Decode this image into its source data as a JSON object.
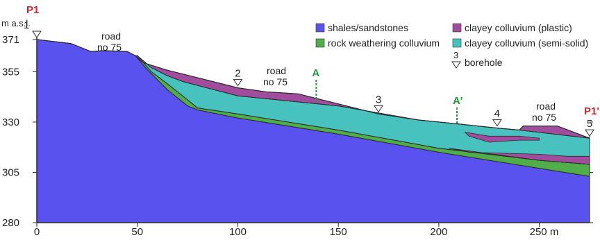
{
  "colors": {
    "shales": "#5a52ee",
    "rock_colluvium": "#4fad4a",
    "clayey_plastic": "#9f4d9c",
    "clayey_semisolid": "#47c2be",
    "profile_label": "#d7262b",
    "section_marker": "#1f9a3a",
    "outline": "#2b2b2b"
  },
  "profile": {
    "start_label": "P1",
    "end_label": "P1'",
    "unit_label": "m a.s.l."
  },
  "x_axis": {
    "range": [
      0,
      275
    ],
    "ticks": [
      "0",
      "50",
      "100",
      "150",
      "200"
    ],
    "last_tick": "250 m"
  },
  "y_axis": {
    "range": [
      280,
      371
    ],
    "ticks": [
      "371",
      "355",
      "330",
      "305",
      "280"
    ]
  },
  "legend": [
    {
      "id": "shales",
      "label": "shales/sandstones"
    },
    {
      "id": "clayey_plastic",
      "label": "clayey colluvium (plastic)"
    },
    {
      "id": "rock_colluvium",
      "label": "rock weathering colluvium"
    },
    {
      "id": "clayey_semisolid",
      "label": "clayey colluvium (semi-solid)"
    },
    {
      "id": "borehole",
      "number": "3",
      "label": "borehole"
    }
  ],
  "boreholes": [
    {
      "number": "1",
      "x": 0,
      "y": 371
    },
    {
      "number": "2",
      "x": 100,
      "y": 347
    },
    {
      "number": "3",
      "x": 170,
      "y": 334
    },
    {
      "number": "4",
      "x": 229,
      "y": 327
    },
    {
      "number": "5",
      "x": 275,
      "y": 322
    }
  ],
  "roads": [
    {
      "line1": "road",
      "line2": "no 75"
    },
    {
      "line1": "road",
      "line2": "no 75"
    },
    {
      "line1": "road",
      "line2": "no 75"
    }
  ],
  "section_markers": [
    {
      "label": "A",
      "x": 139
    },
    {
      "label": "A'",
      "x": 209
    }
  ],
  "surfaces": {
    "ground": [
      [
        0,
        371
      ],
      [
        17,
        369
      ],
      [
        27,
        365
      ],
      [
        33,
        365.5
      ],
      [
        45,
        365
      ],
      [
        49,
        363
      ],
      [
        53,
        359.5
      ],
      [
        64,
        356
      ],
      [
        84,
        351
      ],
      [
        100,
        347
      ],
      [
        114,
        345
      ],
      [
        130,
        344
      ],
      [
        150,
        339
      ],
      [
        170,
        334
      ],
      [
        190,
        331
      ],
      [
        210,
        329
      ],
      [
        229,
        327
      ],
      [
        240,
        326
      ],
      [
        242,
        328
      ],
      [
        259,
        328
      ],
      [
        275,
        322
      ]
    ],
    "semisolid_top": [
      [
        50,
        363
      ],
      [
        57,
        357
      ],
      [
        65,
        353
      ],
      [
        73,
        350
      ],
      [
        100,
        343
      ],
      [
        150,
        338
      ],
      [
        190,
        331
      ],
      [
        210,
        329
      ],
      [
        229,
        327
      ],
      [
        240,
        326
      ],
      [
        275,
        322
      ]
    ],
    "rock_colluvium_top": [
      [
        50,
        363
      ],
      [
        57,
        355
      ],
      [
        65,
        349
      ],
      [
        75,
        341
      ],
      [
        80,
        337
      ],
      [
        100,
        334
      ],
      [
        150,
        326
      ],
      [
        200,
        317
      ],
      [
        250,
        311
      ],
      [
        275,
        309
      ]
    ],
    "bedrock": [
      [
        0,
        371
      ],
      [
        17,
        369
      ],
      [
        27,
        365
      ],
      [
        33,
        365.5
      ],
      [
        45,
        365
      ],
      [
        49,
        363
      ],
      [
        55,
        356
      ],
      [
        65,
        346
      ],
      [
        75,
        338
      ],
      [
        80,
        336
      ],
      [
        100,
        332
      ],
      [
        150,
        324
      ],
      [
        200,
        315
      ],
      [
        250,
        307
      ],
      [
        275,
        303
      ]
    ],
    "lower_plastic_top": [
      [
        200,
        317
      ],
      [
        250,
        316
      ],
      [
        275,
        315
      ]
    ],
    "lower_plastic_bottom": [
      [
        200,
        317
      ],
      [
        250,
        311
      ],
      [
        275,
        309
      ]
    ],
    "lens_outline": [
      [
        205,
        317
      ],
      [
        215,
        315
      ],
      [
        250,
        314
      ],
      [
        264,
        313
      ],
      [
        275,
        313
      ]
    ],
    "lens_bottom": [
      [
        205,
        317
      ],
      [
        250,
        316
      ],
      [
        275,
        315
      ]
    ],
    "thin_lens": [
      [
        213,
        325
      ],
      [
        225,
        323
      ],
      [
        240,
        323
      ],
      [
        250,
        322
      ],
      [
        250,
        321
      ],
      [
        240,
        321
      ],
      [
        225,
        320
      ],
      [
        215,
        323
      ]
    ]
  }
}
